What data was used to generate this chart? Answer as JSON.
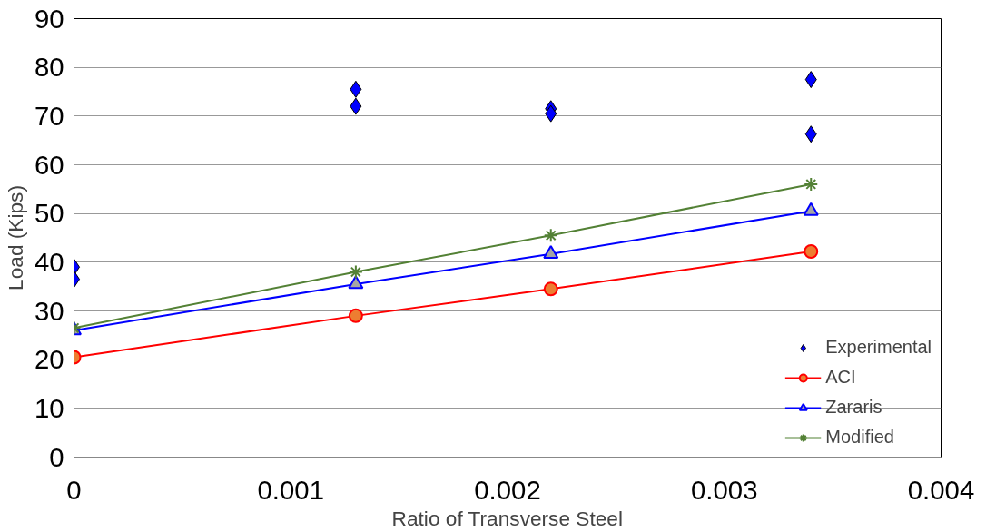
{
  "chart_data": {
    "type": "line",
    "xlabel": "Ratio of Transverse Steel",
    "ylabel": "Load (Kips)",
    "xlim": [
      0,
      0.004
    ],
    "xticks": [
      0,
      0.001,
      0.002,
      0.003,
      0.004
    ],
    "ylim": [
      0,
      90
    ],
    "yticks": [
      0,
      10,
      20,
      30,
      40,
      50,
      60,
      70,
      80,
      90
    ],
    "grid": "y",
    "legend": "bottom right",
    "series": [
      {
        "name": "Experimental",
        "type": "scatter",
        "marker": "diamond",
        "color": "#0000ff",
        "x": [
          0,
          0,
          0.0013,
          0.0013,
          0.0022,
          0.0022,
          0.0034,
          0.0034
        ],
        "values": [
          39,
          36.5,
          75.5,
          72,
          71.5,
          70.5,
          77.5,
          66.3
        ]
      },
      {
        "name": "ACI",
        "marker": "circle",
        "color": "#ff0000",
        "x": [
          0,
          0.0013,
          0.0022,
          0.0034
        ],
        "values": [
          20.5,
          29,
          34.5,
          42.2
        ]
      },
      {
        "name": "Zararis",
        "marker": "triangle",
        "color": "#0000ff",
        "x": [
          0,
          0.0013,
          0.0022,
          0.0034
        ],
        "values": [
          26,
          35.5,
          41.7,
          50.5
        ]
      },
      {
        "name": "Modified",
        "marker": "cross",
        "color": "#538135",
        "x": [
          0,
          0.0013,
          0.0022,
          0.0034
        ],
        "values": [
          26.5,
          38,
          45.5,
          56
        ]
      }
    ]
  }
}
